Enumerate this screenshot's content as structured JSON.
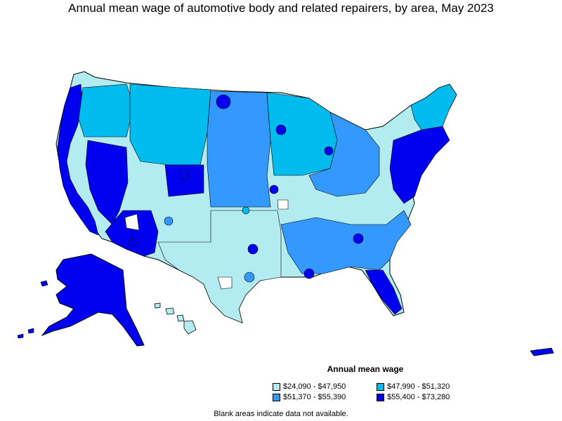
{
  "title": "Annual mean wage of automotive body and related repairers, by area, May 2023",
  "legend": {
    "title": "Annual mean wage",
    "items": [
      {
        "label": "$24,090 - $47,950",
        "color": "#b3ecf0"
      },
      {
        "label": "$51,370 - $55,390",
        "color": "#3399ff"
      },
      {
        "label": "$47,990 - $51,320",
        "color": "#00bbee"
      },
      {
        "label": "$55,400 - $73,280",
        "color": "#0000ee"
      }
    ]
  },
  "footnote": "Blank areas indicate data not available.",
  "colors": {
    "tier1": "#b3ecf0",
    "tier2": "#00bbee",
    "tier3": "#3399ff",
    "tier4": "#0000ee",
    "border": "#000000"
  }
}
